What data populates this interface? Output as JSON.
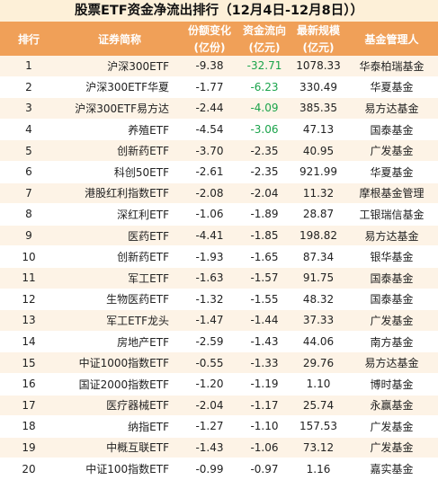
{
  "title": "股票ETF资金净流出排行（12月4日-12月8日））",
  "header": {
    "rank": "排行",
    "name": "证券简称",
    "share_change": "份额变化",
    "share_change_unit": "(亿份)",
    "flow": "资金流向",
    "flow_unit": "(亿元)",
    "size": "最新规模",
    "size_unit": "(亿元)",
    "manager": "基金管理人"
  },
  "colors": {
    "header_bg": "#f0a058",
    "stripe": "#fdf3e6",
    "green": "#1aa34a"
  },
  "rows": [
    {
      "rank": "1",
      "name": "沪深300ETF",
      "share": "-9.38",
      "flow": "-32.71",
      "size": "1078.33",
      "manager": "华泰柏瑞基金",
      "flow_green": true
    },
    {
      "rank": "2",
      "name": "沪深300ETF华夏",
      "share": "-1.77",
      "flow": "-6.23",
      "size": "330.49",
      "manager": "华夏基金",
      "flow_green": true
    },
    {
      "rank": "3",
      "name": "沪深300ETF易方达",
      "share": "-2.44",
      "flow": "-4.09",
      "size": "385.35",
      "manager": "易方达基金",
      "flow_green": true
    },
    {
      "rank": "4",
      "name": "养殖ETF",
      "share": "-4.54",
      "flow": "-3.06",
      "size": "47.13",
      "manager": "国泰基金",
      "flow_green": true
    },
    {
      "rank": "5",
      "name": "创新药ETF",
      "share": "-3.70",
      "flow": "-2.35",
      "size": "40.95",
      "manager": "广发基金",
      "flow_green": false
    },
    {
      "rank": "6",
      "name": "科创50ETF",
      "share": "-2.61",
      "flow": "-2.35",
      "size": "921.99",
      "manager": "华夏基金",
      "flow_green": false
    },
    {
      "rank": "7",
      "name": "港股红利指数ETF",
      "share": "-2.08",
      "flow": "-2.04",
      "size": "11.32",
      "manager": "摩根基金管理",
      "flow_green": false
    },
    {
      "rank": "8",
      "name": "深红利ETF",
      "share": "-1.06",
      "flow": "-1.89",
      "size": "28.87",
      "manager": "工银瑞信基金",
      "flow_green": false
    },
    {
      "rank": "9",
      "name": "医药ETF",
      "share": "-4.41",
      "flow": "-1.85",
      "size": "198.82",
      "manager": "易方达基金",
      "flow_green": false
    },
    {
      "rank": "10",
      "name": "创新药ETF",
      "share": "-1.93",
      "flow": "-1.65",
      "size": "87.34",
      "manager": "银华基金",
      "flow_green": false
    },
    {
      "rank": "11",
      "name": "军工ETF",
      "share": "-1.63",
      "flow": "-1.57",
      "size": "91.75",
      "manager": "国泰基金",
      "flow_green": false
    },
    {
      "rank": "12",
      "name": "生物医药ETF",
      "share": "-1.32",
      "flow": "-1.55",
      "size": "48.32",
      "manager": "国泰基金",
      "flow_green": false
    },
    {
      "rank": "13",
      "name": "军工ETF龙头",
      "share": "-1.47",
      "flow": "-1.44",
      "size": "37.33",
      "manager": "广发基金",
      "flow_green": false
    },
    {
      "rank": "14",
      "name": "房地产ETF",
      "share": "-2.59",
      "flow": "-1.43",
      "size": "44.06",
      "manager": "南方基金",
      "flow_green": false
    },
    {
      "rank": "15",
      "name": "中证1000指数ETF",
      "share": "-0.55",
      "flow": "-1.33",
      "size": "29.76",
      "manager": "易方达基金",
      "flow_green": false
    },
    {
      "rank": "16",
      "name": "国证2000指数ETF",
      "share": "-1.20",
      "flow": "-1.19",
      "size": "1.10",
      "manager": "博时基金",
      "flow_green": false
    },
    {
      "rank": "17",
      "name": "医疗器械ETF",
      "share": "-2.04",
      "flow": "-1.17",
      "size": "25.74",
      "manager": "永赢基金",
      "flow_green": false
    },
    {
      "rank": "18",
      "name": "纳指ETF",
      "share": "-1.27",
      "flow": "-1.10",
      "size": "157.53",
      "manager": "广发基金",
      "flow_green": false
    },
    {
      "rank": "19",
      "name": "中概互联ETF",
      "share": "-1.43",
      "flow": "-1.06",
      "size": "73.12",
      "manager": "广发基金",
      "flow_green": false
    },
    {
      "rank": "20",
      "name": "中证100指数ETF",
      "share": "-0.99",
      "flow": "-0.97",
      "size": "1.16",
      "manager": "嘉实基金",
      "flow_green": false
    }
  ]
}
